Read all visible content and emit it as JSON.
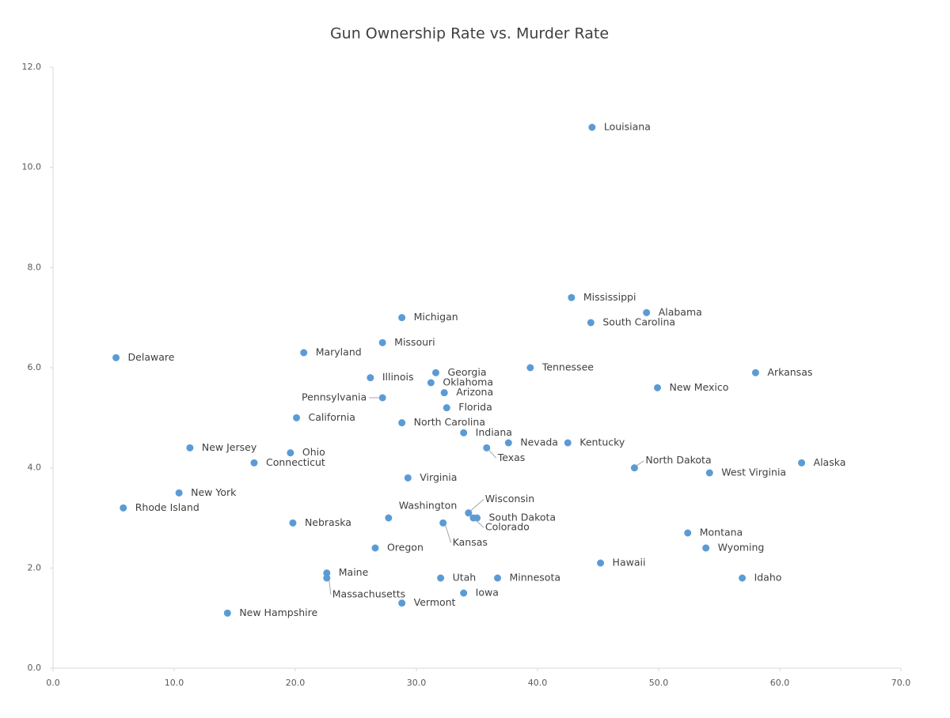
{
  "chart_data": {
    "type": "scatter",
    "title": "Gun Ownership Rate vs. Murder Rate",
    "color": "#5b9bd5",
    "labels": [
      "Louisiana",
      "Mississippi",
      "Alabama",
      "South Carolina",
      "Michigan",
      "Missouri",
      "Maryland",
      "Delaware",
      "Tennessee",
      "Arkansas",
      "Illinois",
      "Georgia",
      "Oklahoma",
      "Arizona",
      "New Mexico",
      "Pennsylvania",
      "Florida",
      "California",
      "North Carolina",
      "Indiana",
      "Nevada",
      "Kentucky",
      "Texas",
      "New Jersey",
      "Ohio",
      "Connecticut",
      "North Dakota",
      "Alaska",
      "West Virginia",
      "Virginia",
      "New York",
      "Rhode Island",
      "Wisconsin",
      "South Dakota",
      "Colorado",
      "Washington",
      "Kansas",
      "Nebraska",
      "Montana",
      "Oregon",
      "Wyoming",
      "Hawaii",
      "Maine",
      "Massachusetts",
      "Utah",
      "Minnesota",
      "Idaho",
      "Iowa",
      "Vermont",
      "New Hampshire"
    ],
    "x": [
      44.5,
      42.8,
      49.0,
      44.4,
      28.8,
      27.2,
      20.7,
      5.2,
      39.4,
      58.0,
      26.2,
      31.6,
      31.2,
      32.3,
      49.9,
      27.2,
      32.5,
      20.1,
      28.8,
      33.9,
      37.6,
      42.5,
      35.8,
      11.3,
      19.6,
      16.6,
      48.0,
      61.8,
      54.2,
      29.3,
      10.4,
      5.8,
      34.3,
      35.0,
      34.7,
      27.7,
      32.2,
      19.8,
      52.4,
      26.6,
      53.9,
      45.2,
      22.6,
      22.6,
      32.0,
      36.7,
      56.9,
      33.9,
      28.8,
      14.4
    ],
    "values": [
      10.8,
      7.4,
      7.1,
      6.9,
      7.0,
      6.5,
      6.3,
      6.2,
      6.0,
      5.9,
      5.8,
      5.9,
      5.7,
      5.5,
      5.6,
      5.4,
      5.2,
      5.0,
      4.9,
      4.7,
      4.5,
      4.5,
      4.4,
      4.4,
      4.3,
      4.1,
      4.0,
      4.1,
      3.9,
      3.8,
      3.5,
      3.2,
      3.1,
      3.0,
      3.0,
      3.0,
      2.9,
      2.9,
      2.7,
      2.4,
      2.4,
      2.1,
      1.9,
      1.8,
      1.8,
      1.8,
      1.8,
      1.5,
      1.3,
      1.1
    ],
    "xlim": [
      0,
      70
    ],
    "ylim": [
      0,
      12
    ],
    "xticks": [
      {
        "value": 0,
        "label": "0.0"
      },
      {
        "value": 10,
        "label": "10.0"
      },
      {
        "value": 20,
        "label": "20.0"
      },
      {
        "value": 30,
        "label": "30.0"
      },
      {
        "value": 40,
        "label": "40.0"
      },
      {
        "value": 50,
        "label": "50.0"
      },
      {
        "value": 60,
        "label": "60.0"
      },
      {
        "value": 70,
        "label": "70.0"
      }
    ],
    "yticks": [
      {
        "value": 0,
        "label": "0.0"
      },
      {
        "value": 2,
        "label": "2.0"
      },
      {
        "value": 4,
        "label": "4.0"
      },
      {
        "value": 6,
        "label": "6.0"
      },
      {
        "value": 8,
        "label": "8.0"
      },
      {
        "value": 10,
        "label": "10.0"
      },
      {
        "value": 12,
        "label": "12.0"
      }
    ]
  }
}
